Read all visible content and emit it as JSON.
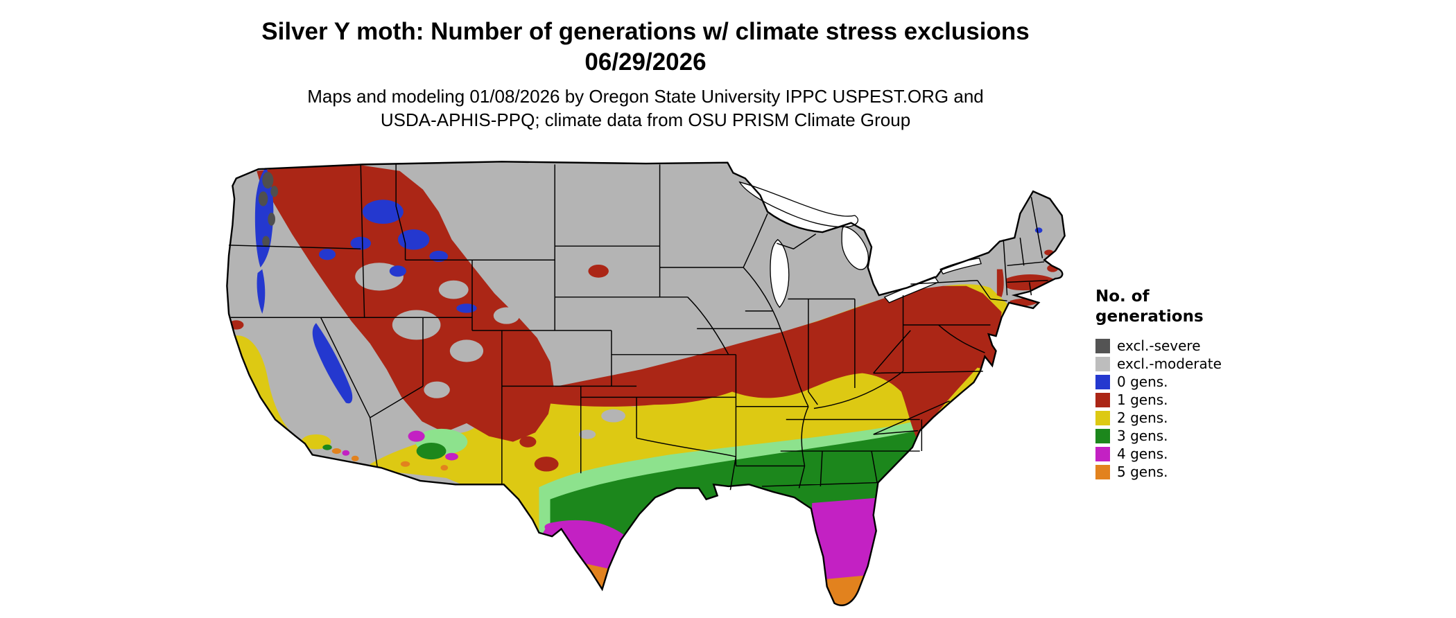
{
  "header": {
    "title_line1": "Silver Y moth: Number of generations w/ climate stress exclusions",
    "title_line2": "06/29/2026",
    "subtitle_line1": "Maps and modeling 01/08/2026 by Oregon State University IPPC USPEST.ORG and",
    "subtitle_line2": "USDA-APHIS-PPQ; climate data from OSU PRISM Climate Group"
  },
  "legend": {
    "title_line1": "No. of",
    "title_line2": "generations",
    "items": [
      {
        "label": "excl.-severe",
        "color": "#545454"
      },
      {
        "label": "excl.-moderate",
        "color": "#bdbdbd"
      },
      {
        "label": "0 gens.",
        "color": "#2438cf"
      },
      {
        "label": "1 gens.",
        "color": "#ab2616"
      },
      {
        "label": "2 gens.",
        "color": "#ddc913"
      },
      {
        "label": "3 gens.",
        "color": "#1c871c"
      },
      {
        "label": "4 gens.",
        "color": "#c321c3"
      },
      {
        "label": "5 gens.",
        "color": "#e2821e"
      }
    ]
  },
  "map": {
    "colors": {
      "base_moderate": "#b4b4b4",
      "severe": "#4f4f4f",
      "gens0": "#2438cf",
      "gens1": "#ab2616",
      "gens2": "#ddc913",
      "gens3_light": "#8de28d",
      "gens3": "#1c871c",
      "gens4": "#c321c3",
      "gens5": "#e2821e",
      "border": "#000000",
      "water": "#ffffff"
    }
  }
}
